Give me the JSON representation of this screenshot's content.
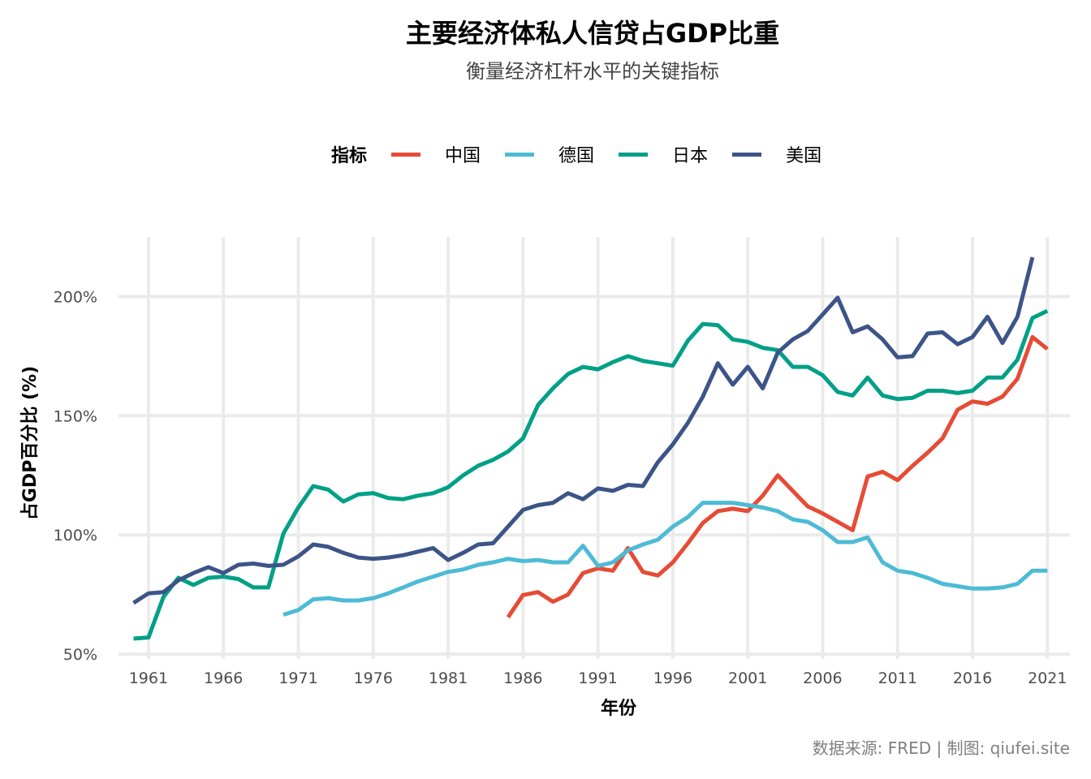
{
  "title": "主要经济体私人信贷占GDP比重",
  "subtitle": "衡量经济杠杆水平的关键指标",
  "legend": {
    "title": "指标"
  },
  "caption": "数据来源: FRED | 制图: qiufei.site",
  "chart_data": {
    "type": "line",
    "xlabel": "年份",
    "ylabel": "占GDP百分比 (%)",
    "xlim": [
      1959,
      2022.5
    ],
    "ylim": [
      48,
      225
    ],
    "x_ticks": [
      1961,
      1966,
      1971,
      1976,
      1981,
      1986,
      1991,
      1996,
      2001,
      2006,
      2011,
      2016,
      2021
    ],
    "y_ticks": [
      50,
      100,
      150,
      200
    ],
    "y_tick_labels": [
      "50%",
      "100%",
      "150%",
      "200%"
    ],
    "grid": true,
    "legend_position": "top",
    "series": [
      {
        "name": "中国",
        "color": "#E64B35",
        "x": [
          1985,
          1986,
          1987,
          1988,
          1989,
          1990,
          1991,
          1992,
          1993,
          1994,
          1995,
          1996,
          1997,
          1998,
          1999,
          2000,
          2001,
          2002,
          2003,
          2004,
          2005,
          2006,
          2007,
          2008,
          2009,
          2010,
          2011,
          2012,
          2013,
          2014,
          2015,
          2016,
          2017,
          2018,
          2019,
          2020,
          2021
        ],
        "y": [
          65.5,
          74.8,
          76,
          72,
          75,
          84,
          86,
          85,
          94.5,
          84.5,
          83,
          88.5,
          96.5,
          105,
          110,
          111,
          110,
          116.5,
          125,
          118.5,
          112,
          109,
          105.5,
          102,
          124.5,
          126.5,
          123,
          129,
          134.5,
          140.5,
          152.5,
          156,
          155,
          158,
          165.5,
          183,
          178
        ]
      },
      {
        "name": "德国",
        "color": "#4DBBD5",
        "x": [
          1970,
          1971,
          1972,
          1973,
          1974,
          1975,
          1976,
          1977,
          1978,
          1979,
          1980,
          1981,
          1982,
          1983,
          1984,
          1985,
          1986,
          1987,
          1988,
          1989,
          1990,
          1991,
          1992,
          1993,
          1994,
          1995,
          1996,
          1997,
          1998,
          1999,
          2000,
          2001,
          2002,
          2003,
          2004,
          2005,
          2006,
          2007,
          2008,
          2009,
          2010,
          2011,
          2012,
          2013,
          2014,
          2015,
          2016,
          2017,
          2018,
          2019,
          2020,
          2021
        ],
        "y": [
          66.5,
          68.5,
          73,
          73.5,
          72.5,
          72.5,
          73.5,
          75.5,
          78,
          80.5,
          82.5,
          84.5,
          85.5,
          87.5,
          88.5,
          90,
          89,
          89.5,
          88.5,
          88.5,
          95.5,
          87,
          88.5,
          93.5,
          96,
          98,
          103.5,
          107.5,
          113.5,
          113.5,
          113.5,
          112.5,
          111.5,
          110,
          106.5,
          105.5,
          102,
          97,
          97,
          99,
          88.5,
          85,
          84,
          82,
          79.5,
          78.5,
          77.5,
          77.5,
          78,
          79.5,
          85,
          85
        ]
      },
      {
        "name": "日本",
        "color": "#00A087",
        "x": [
          1960,
          1961,
          1962,
          1963,
          1964,
          1965,
          1966,
          1967,
          1968,
          1969,
          1970,
          1971,
          1972,
          1973,
          1974,
          1975,
          1976,
          1977,
          1978,
          1979,
          1980,
          1981,
          1982,
          1983,
          1984,
          1985,
          1986,
          1987,
          1988,
          1989,
          1990,
          1991,
          1992,
          1993,
          1994,
          1995,
          1996,
          1997,
          1998,
          1999,
          2000,
          2001,
          2002,
          2003,
          2004,
          2005,
          2006,
          2007,
          2008,
          2009,
          2010,
          2011,
          2012,
          2013,
          2014,
          2015,
          2016,
          2017,
          2018,
          2019,
          2020,
          2021
        ],
        "y": [
          56.5,
          57,
          74,
          82,
          79,
          82,
          82.5,
          81.5,
          78,
          78,
          100.5,
          111.5,
          120.5,
          119,
          114,
          117,
          117.5,
          115.5,
          115,
          116.5,
          117.5,
          120,
          125,
          129,
          131.5,
          135,
          140.5,
          154.5,
          161.5,
          167.5,
          170.5,
          169.5,
          172.5,
          175,
          173,
          172,
          171,
          181.5,
          188.5,
          188,
          182,
          181,
          178.5,
          177.5,
          170.5,
          170.5,
          167,
          160,
          158.5,
          166,
          158.5,
          157,
          157.5,
          160.5,
          160.5,
          159.5,
          160.5,
          166,
          166,
          173.5,
          191,
          194
        ]
      },
      {
        "name": "美国",
        "color": "#3C5488",
        "x": [
          1960,
          1961,
          1962,
          1963,
          1964,
          1965,
          1966,
          1967,
          1968,
          1969,
          1970,
          1971,
          1972,
          1973,
          1974,
          1975,
          1976,
          1977,
          1978,
          1979,
          1980,
          1981,
          1982,
          1983,
          1984,
          1985,
          1986,
          1987,
          1988,
          1989,
          1990,
          1991,
          1992,
          1993,
          1994,
          1995,
          1996,
          1997,
          1998,
          1999,
          2000,
          2001,
          2002,
          2003,
          2004,
          2005,
          2006,
          2007,
          2008,
          2009,
          2010,
          2011,
          2012,
          2013,
          2014,
          2015,
          2016,
          2017,
          2018,
          2019,
          2020
        ],
        "y": [
          71.5,
          75.5,
          76,
          81,
          84,
          86.5,
          84,
          87.5,
          88,
          87,
          87.5,
          91,
          96,
          95,
          92.5,
          90.5,
          90,
          90.5,
          91.5,
          93,
          94.5,
          89.5,
          92.5,
          96,
          96.5,
          103.5,
          110.5,
          112.5,
          113.5,
          117.5,
          115,
          119.5,
          118.5,
          121,
          120.5,
          130.5,
          138,
          147,
          158,
          172,
          163,
          170.5,
          161.5,
          176.5,
          182,
          185.5,
          192.5,
          199.5,
          185,
          187.5,
          182,
          174.5,
          175,
          184.5,
          185,
          180,
          183,
          191.5,
          180.5,
          191.5,
          216.5
        ]
      }
    ]
  }
}
